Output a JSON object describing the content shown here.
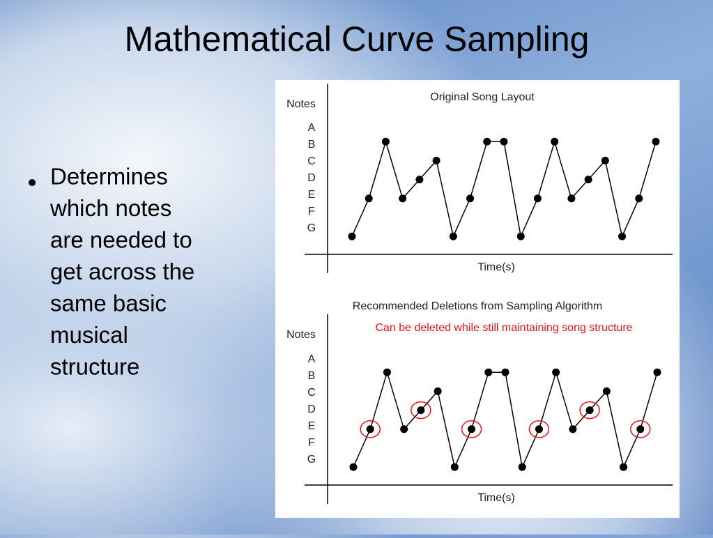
{
  "title": "Mathematical Curve Sampling",
  "bullet": [
    "Determines",
    "which notes",
    "are needed to",
    "get across the",
    "same basic",
    "musical",
    "structure"
  ],
  "chart_data": [
    {
      "type": "line",
      "title": "Original Song Layout",
      "ylabel": "Notes",
      "xlabel": "Time(s)",
      "y_categories": [
        "A",
        "B",
        "C",
        "D",
        "E",
        "F",
        "G"
      ],
      "values": [
        "G",
        "E",
        "B",
        "E",
        "D",
        "C",
        "G",
        "E",
        "B",
        "B",
        "G",
        "E",
        "B",
        "E",
        "D",
        "C",
        "G",
        "E",
        "B"
      ],
      "color": "#000000"
    },
    {
      "type": "line",
      "title": "Recommended Deletions from Sampling Algorithm",
      "ylabel": "Notes",
      "xlabel": "Time(s)",
      "annotation": "Can be deleted while still maintaining song structure",
      "y_categories": [
        "A",
        "B",
        "C",
        "D",
        "E",
        "F",
        "G"
      ],
      "values": [
        "G",
        "E",
        "B",
        "E",
        "D",
        "C",
        "G",
        "E",
        "B",
        "B",
        "G",
        "E",
        "B",
        "E",
        "D",
        "C",
        "G",
        "E",
        "B"
      ],
      "circled": [
        1,
        4,
        7,
        11,
        14,
        17
      ],
      "color": "#000000",
      "circle_color": "#e8141c"
    }
  ]
}
